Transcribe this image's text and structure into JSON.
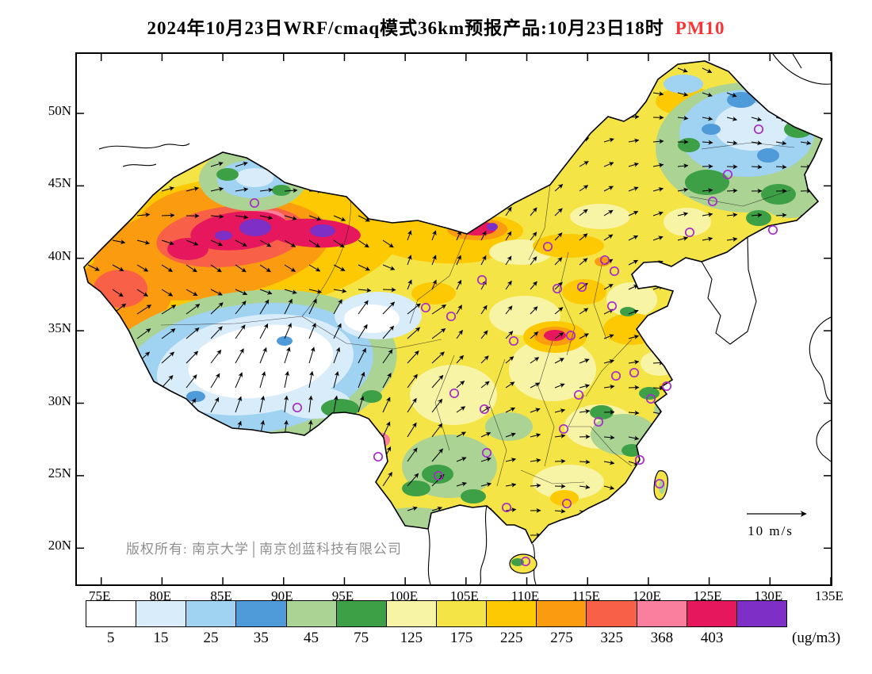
{
  "title": {
    "text": "2024年10月23日WRF/cmaq模式36km预报产品:10月23日18时",
    "pollutant": "PM10",
    "pollutant_color": "#fa3434"
  },
  "axes": {
    "lat": [
      "50N",
      "45N",
      "40N",
      "35N",
      "30N",
      "25N",
      "20N"
    ],
    "lon": [
      "75E",
      "80E",
      "85E",
      "90E",
      "95E",
      "100E",
      "105E",
      "110E",
      "115E",
      "120E",
      "125E",
      "130E",
      "135E"
    ]
  },
  "annotations": {
    "copyright": "版权所有: 南京大学│南京创蓝科技有限公司",
    "wind_scale": "10 m/s"
  },
  "colorbar": {
    "unit": "(ug/m3)",
    "ticks": [
      "5",
      "15",
      "25",
      "35",
      "45",
      "75",
      "125",
      "175",
      "225",
      "275",
      "325",
      "368",
      "403"
    ],
    "colors": [
      "#ffffff",
      "#d9ecfa",
      "#a0d2f2",
      "#4f9ad8",
      "#abd393",
      "#3da047",
      "#f8f4a6",
      "#f5e445",
      "#fdc902",
      "#fb9b0f",
      "#f86048",
      "#fa7f9e",
      "#e6175c",
      "#7d2fc6"
    ],
    "station_ring_color": "#a829c9"
  }
}
